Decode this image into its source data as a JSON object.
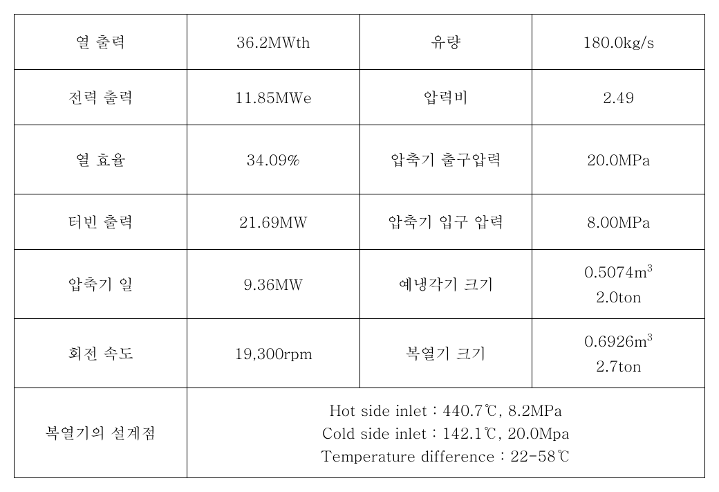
{
  "table": {
    "columns": [
      {
        "width": "25%"
      },
      {
        "width": "25%"
      },
      {
        "width": "25%"
      },
      {
        "width": "25%"
      }
    ],
    "rows": [
      {
        "height_class": "row-normal",
        "cells": [
          {
            "label": "열 출력",
            "value": "36.2MWth",
            "label2": "유량",
            "value2": "180.0kg/s"
          }
        ]
      },
      {
        "height_class": "row-normal",
        "cells": [
          {
            "label": "전력 출력",
            "value": "11.85MWe",
            "label2": "압력비",
            "value2": "2.49"
          }
        ]
      },
      {
        "height_class": "row-tall",
        "cells": [
          {
            "label": "열 효율",
            "value": "34.09%",
            "label2": "압축기 출구압력",
            "value2": "20.0MPa"
          }
        ]
      },
      {
        "height_class": "row-normal",
        "cells": [
          {
            "label": "터빈 출력",
            "value": "21.69MW",
            "label2": "압축기 입구 압력",
            "value2": "8.00MPa"
          }
        ]
      }
    ],
    "row5": {
      "label": "압축기 일",
      "value": "9.36MW",
      "label2": "예냉각기 크기",
      "value2_line1": "0.5074m",
      "value2_sup": "3",
      "value2_line2": "2.0ton"
    },
    "row6": {
      "label": "회전 속도",
      "value": "19,300rpm",
      "label2": "복열기 크기",
      "value2_line1": "0.6926m",
      "value2_sup": "3",
      "value2_line2": "2.7ton"
    },
    "row7": {
      "label": "복열기의 설계점",
      "line1": "Hot side inlet : 440.7℃, 8.2MPa",
      "line2": "Cold side inlet : 142.1℃, 20.0Mpa",
      "line3": "Temperature difference : 22-58℃"
    },
    "border_color": "#000000",
    "background_color": "#ffffff",
    "text_color": "#000000",
    "font_size": 22
  }
}
